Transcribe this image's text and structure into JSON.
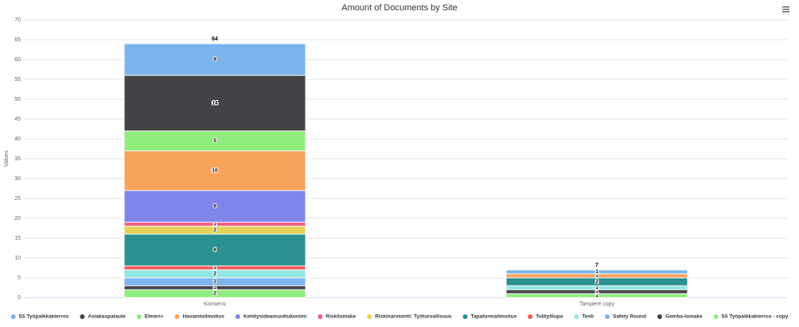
{
  "chart_data": {
    "type": "stacked_bar",
    "title": "Amount of Documents by Site",
    "y_label": "Values",
    "categories": [
      "Konserni",
      "Tampere copy"
    ],
    "ylim": [
      0,
      70
    ],
    "yticks": [
      0,
      5,
      10,
      15,
      20,
      25,
      30,
      35,
      40,
      45,
      50,
      55,
      60,
      65,
      70
    ],
    "grid": true,
    "stack_totals": [
      64,
      7
    ],
    "series": [
      {
        "name": "5S Työpaikkakierros",
        "color": "#7cb5ec",
        "values": [
          8,
          1
        ]
      },
      {
        "name": "Asiakaspalaute",
        "color": "#434348",
        "values": [
          14,
          null
        ]
      },
      {
        "name": "Elmeri+",
        "color": "#90ed7d",
        "values": [
          5,
          null
        ]
      },
      {
        "name": "Havaintoilmoitus",
        "color": "#f7a35c",
        "values": [
          10,
          1
        ]
      },
      {
        "name": "Kehitysideamuuttukonimi",
        "color": "#8085e9",
        "values": [
          8,
          null
        ]
      },
      {
        "name": "Riskilomake",
        "color": "#f15c80",
        "values": [
          1,
          null
        ]
      },
      {
        "name": "Riskinarviointi: Työturvallisuus",
        "color": "#e4d354",
        "values": [
          2,
          null
        ]
      },
      {
        "name": "Tapaturmailmoitus",
        "color": "#2b908f",
        "values": [
          8,
          2
        ]
      },
      {
        "name": "Tulityölupa",
        "color": "#f45b5b",
        "values": [
          1,
          null
        ]
      },
      {
        "name": "Testi",
        "color": "#91e8e1",
        "values": [
          2,
          1
        ]
      },
      {
        "name": "Safety Round",
        "color": "#7cb5ec",
        "values": [
          2,
          null
        ]
      },
      {
        "name": "Gemba-lomake",
        "color": "#434348",
        "values": [
          1,
          1
        ]
      },
      {
        "name": "5S Työpaikkakierros - copy",
        "color": "#90ed7d",
        "values": [
          2,
          1
        ]
      }
    ]
  }
}
